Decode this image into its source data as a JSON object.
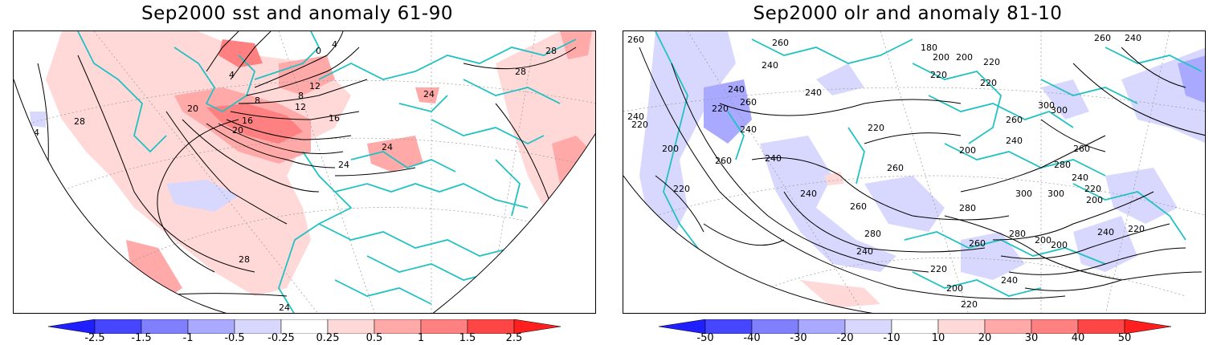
{
  "panels": [
    {
      "title": "Sep2000 sst and anomaly 61-90",
      "contour_labels": [
        "28",
        "24",
        "28",
        "16",
        "20",
        "4",
        "8",
        "12",
        "16",
        "20",
        "24",
        "24",
        "24",
        "28",
        "28",
        "12",
        "8",
        "0",
        "4",
        "24"
      ],
      "colorbar": {
        "ticks": [
          "-2.5",
          "-1.5",
          "-1",
          "-0.5",
          "-0.25",
          "0.25",
          "0.5",
          "1",
          "1.5",
          "2.5"
        ],
        "colors": [
          "#1f1fff",
          "#4646ff",
          "#8080ff",
          "#a9a9ff",
          "#d8d8ff",
          "#ffffff",
          "#ffd8d8",
          "#ffa9a9",
          "#ff8080",
          "#ff4646",
          "#ff1f1f"
        ]
      }
    },
    {
      "title": "Sep2000 olr and anomaly 81-10",
      "contour_labels": [
        "260",
        "240",
        "220",
        "260",
        "240",
        "220",
        "240",
        "260",
        "200",
        "220",
        "240",
        "260",
        "280",
        "300",
        "220",
        "200",
        "180",
        "200",
        "220",
        "240",
        "260",
        "300",
        "240",
        "220",
        "200",
        "260",
        "240",
        "220",
        "240",
        "280",
        "260",
        "240",
        "220",
        "200",
        "300",
        "280",
        "260",
        "240",
        "220",
        "200",
        "260",
        "240",
        "220",
        "200",
        "240",
        "220",
        "200",
        "300",
        "280",
        "260",
        "240"
      ],
      "colorbar": {
        "ticks": [
          "-50",
          "-40",
          "-30",
          "-20",
          "-10",
          "10",
          "20",
          "30",
          "40",
          "50"
        ],
        "colors": [
          "#1f1fff",
          "#4646ff",
          "#8080ff",
          "#a9a9ff",
          "#d8d8ff",
          "#ffffff",
          "#ffd8d8",
          "#ffa9a9",
          "#ff8080",
          "#ff4646",
          "#ff1f1f"
        ]
      }
    }
  ]
}
